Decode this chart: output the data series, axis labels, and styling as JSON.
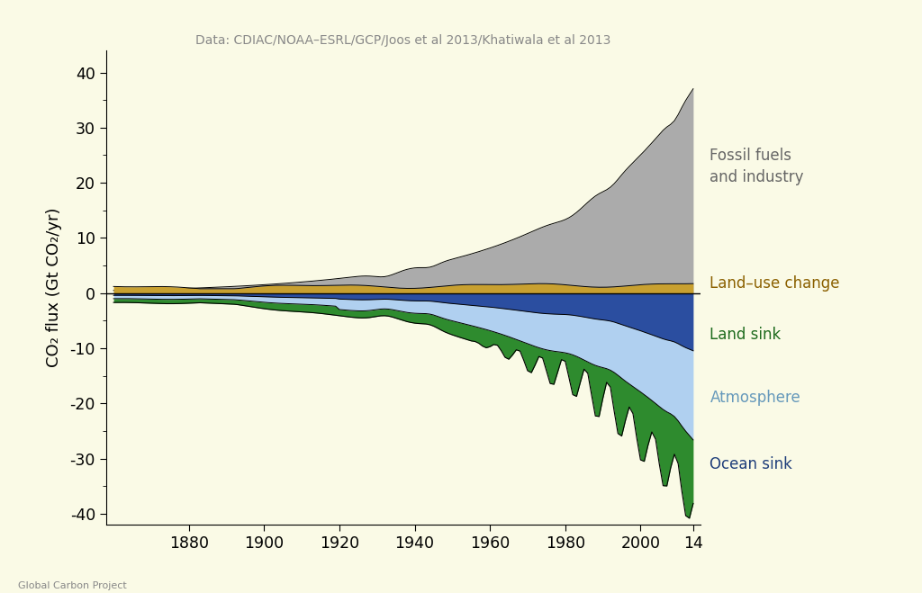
{
  "title": "Data: CDIAC/NOAA–ESRL/GCP/Joos et al 2013/Khatiwala et al 2013",
  "ylabel": "CO₂ flux (Gt CO₂/yr)",
  "background_color": "#FAFAE6",
  "xlim": [
    1858,
    2016
  ],
  "ylim": [
    -42,
    44
  ],
  "xticks": [
    1880,
    1900,
    1920,
    1940,
    1960,
    1980,
    2000,
    2014
  ],
  "xtick_labels": [
    "1880",
    "1900",
    "1920",
    "1940",
    "1960",
    "1980",
    "2000",
    "14"
  ],
  "yticks": [
    -40,
    -30,
    -20,
    -10,
    0,
    10,
    20,
    30,
    40
  ],
  "fossil_color": "#ABABAB",
  "landuse_color": "#C8A030",
  "landsink_color": "#2E8B2E",
  "atmosphere_color": "#B0D0F0",
  "oceansink_color": "#2B4EA0",
  "fossil_label": "Fossil fuels\nand industry",
  "landuse_label": "Land–use change",
  "landsink_label": "Land sink",
  "atmosphere_label": "Atmosphere",
  "oceansink_label": "Ocean sink",
  "footer": "Global Carbon Project",
  "title_color": "#888888",
  "fossil_label_color": "#666666",
  "landuse_label_color": "#8B6000",
  "landsink_label_color": "#1E6B1E",
  "atmosphere_label_color": "#6699BB",
  "oceansink_label_color": "#1F3E7A"
}
